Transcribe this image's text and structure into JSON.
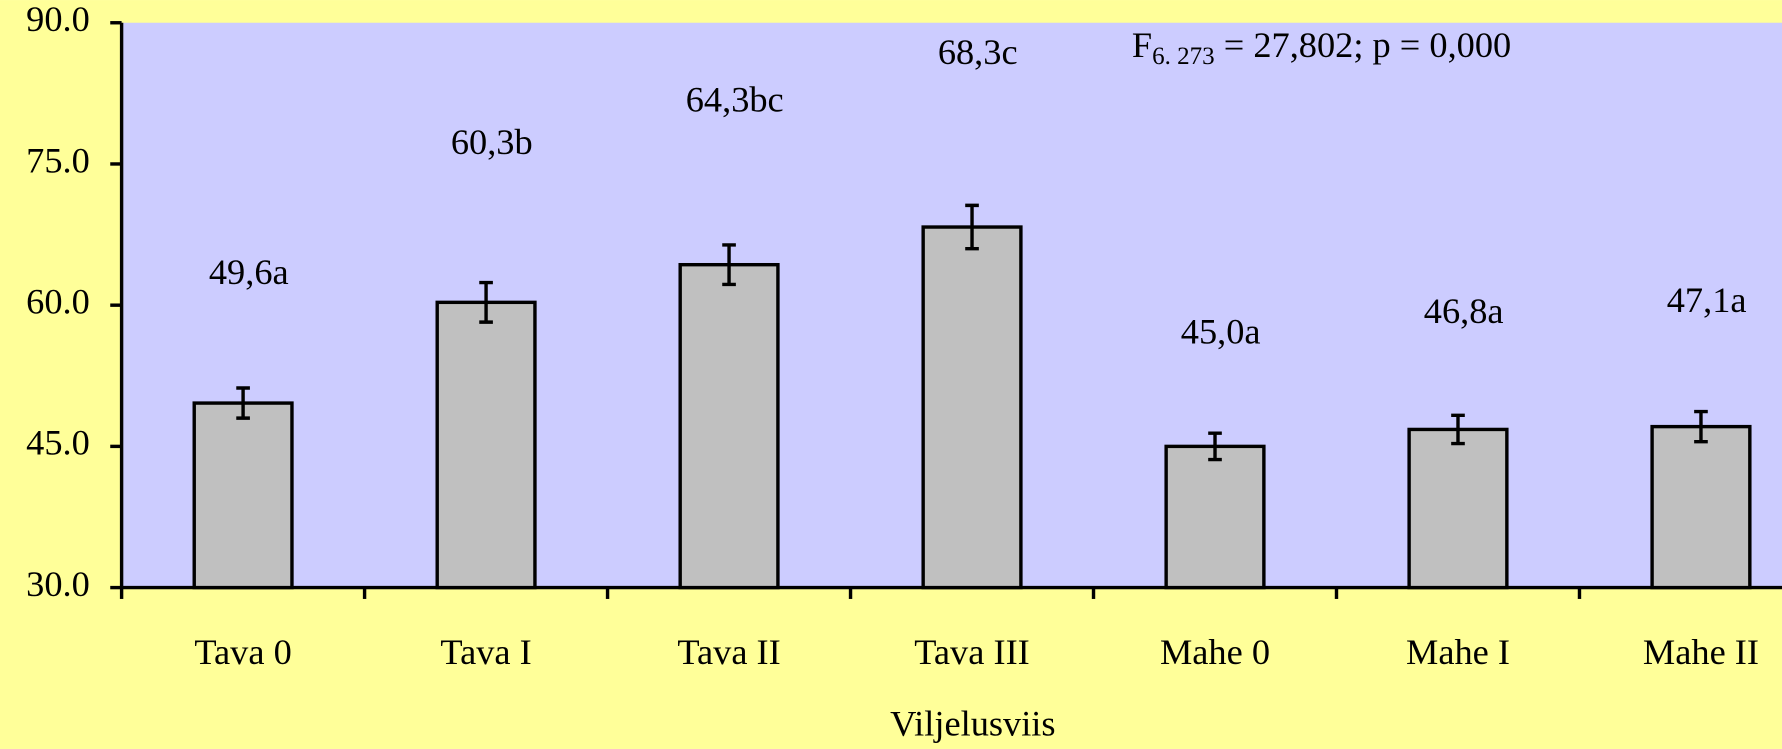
{
  "chart_data": {
    "type": "bar",
    "x_label": "Viljelusviis",
    "annotation": {
      "main": "F",
      "subscript": "6. 273",
      "rest": " = 27,802; p = 0,000"
    },
    "categories": [
      "Tava 0",
      "Tava I",
      "Tava II",
      "Tava III",
      "Mahe 0",
      "Mahe I",
      "Mahe II"
    ],
    "values": [
      49.6,
      60.3,
      64.3,
      68.3,
      45.0,
      46.8,
      47.1
    ],
    "value_labels": [
      "49,6a",
      "60,3b",
      "64,3bc",
      "68,3c",
      "45,0a",
      "46,8a",
      "47,1a"
    ],
    "errors": [
      1.6,
      2.1,
      2.1,
      2.3,
      1.4,
      1.5,
      1.6
    ],
    "color": "#c0c0c0",
    "plot_background": "#ccccff",
    "background": "#ffff99",
    "ylim": [
      30,
      90
    ],
    "yticks": [
      {
        "value": 30,
        "label": "30.0"
      },
      {
        "value": 45,
        "label": "45.0"
      },
      {
        "value": 60,
        "label": "60.0"
      },
      {
        "value": 75,
        "label": "75.0"
      },
      {
        "value": 90,
        "label": "90.0"
      }
    ],
    "grid": false
  }
}
